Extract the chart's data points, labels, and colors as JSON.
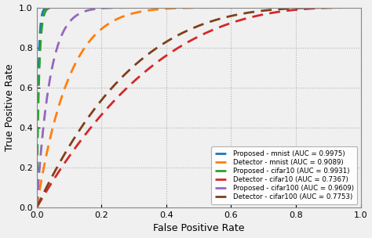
{
  "title": "",
  "xlabel": "False Positive Rate",
  "ylabel": "True Positive Rate",
  "xlim": [
    0.0,
    1.0
  ],
  "ylim": [
    0.0,
    1.0
  ],
  "curves": [
    {
      "label": "Proposed - mnist (AUC = 0.9975)",
      "color": "#1f77b4",
      "auc": 0.9975,
      "beta": 200.0
    },
    {
      "label": "Detector - mnist (AUC = 0.9089)",
      "color": "#ff7f0e",
      "auc": 0.9089,
      "beta": 10.0
    },
    {
      "label": "Proposed - cifar10 (AUC = 0.9931)",
      "color": "#2ca02c",
      "auc": 0.9931,
      "beta": 143.0
    },
    {
      "label": "Detector - cifar10 (AUC = 0.7367)",
      "color": "#d62728",
      "auc": 0.7367,
      "beta": 2.79
    },
    {
      "label": "Proposed - cifar100 (AUC = 0.9609)",
      "color": "#9467bd",
      "auc": 0.9609,
      "beta": 24.6
    },
    {
      "label": "Detector - cifar100 (AUC = 0.7753)",
      "color": "#7f3f1a",
      "auc": 0.7753,
      "beta": 3.45
    }
  ],
  "grid_color": "#b0b0b0",
  "background_color": "#f0f0f0",
  "legend_loc": "lower right",
  "tick_values": [
    0.0,
    0.2,
    0.4,
    0.6,
    0.8,
    1.0
  ],
  "figsize": [
    4.74,
    3.04
  ],
  "dpi": 100,
  "linewidth": 2.0,
  "dash_pattern": [
    5,
    3
  ]
}
